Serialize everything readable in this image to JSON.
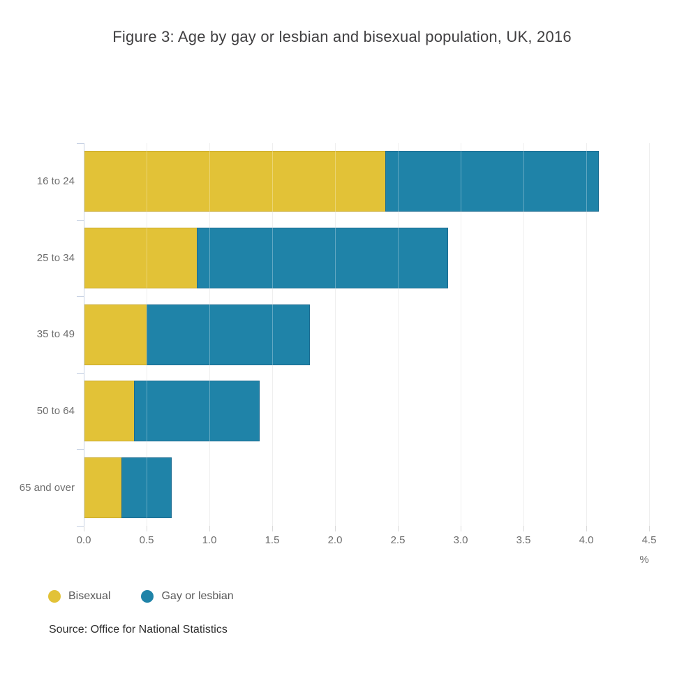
{
  "title": "Figure 3: Age by gay or lesbian and bisexual population, UK, 2016",
  "source": "Source: Office for National Statistics",
  "x_axis": {
    "tick_labels": [
      "0.0",
      "0.5",
      "1.0",
      "1.5",
      "2.0",
      "2.5",
      "3.0",
      "3.5",
      "4.0",
      "4.5"
    ],
    "unit_label": "%",
    "min": 0,
    "max": 4.5
  },
  "legend": {
    "items": [
      {
        "label": "Bisexual",
        "color": "#e2c237"
      },
      {
        "label": "Gay or lesbian",
        "color": "#1f83a8"
      }
    ]
  },
  "colors": {
    "bisexual_fill": "#e2c237",
    "bisexual_border": "#c9a928",
    "gay_lesbian_fill": "#1f83a8",
    "gay_lesbian_border": "#1b6b90",
    "axis": "#c8d2e4",
    "gridline": "#e8e8e8",
    "tick": "#d9d9d9"
  },
  "chart_data": {
    "type": "bar",
    "orientation": "horizontal",
    "stacked": true,
    "title": "Figure 3: Age by gay or lesbian and bisexual population, UK, 2016",
    "xlabel": "%",
    "ylabel": "",
    "xlim": [
      0,
      4.5
    ],
    "grid": true,
    "legend_position": "bottom-left",
    "categories": [
      "16 to 24",
      "25 to 34",
      "35 to 49",
      "50 to 64",
      "65 and over"
    ],
    "series": [
      {
        "name": "Bisexual",
        "color": "#e2c237",
        "values": [
          2.4,
          0.9,
          0.5,
          0.4,
          0.3
        ]
      },
      {
        "name": "Gay or lesbian",
        "color": "#1f83a8",
        "values": [
          1.7,
          2.0,
          1.3,
          1.0,
          0.4
        ]
      }
    ],
    "totals": [
      4.1,
      2.9,
      1.8,
      1.4,
      0.7
    ]
  }
}
